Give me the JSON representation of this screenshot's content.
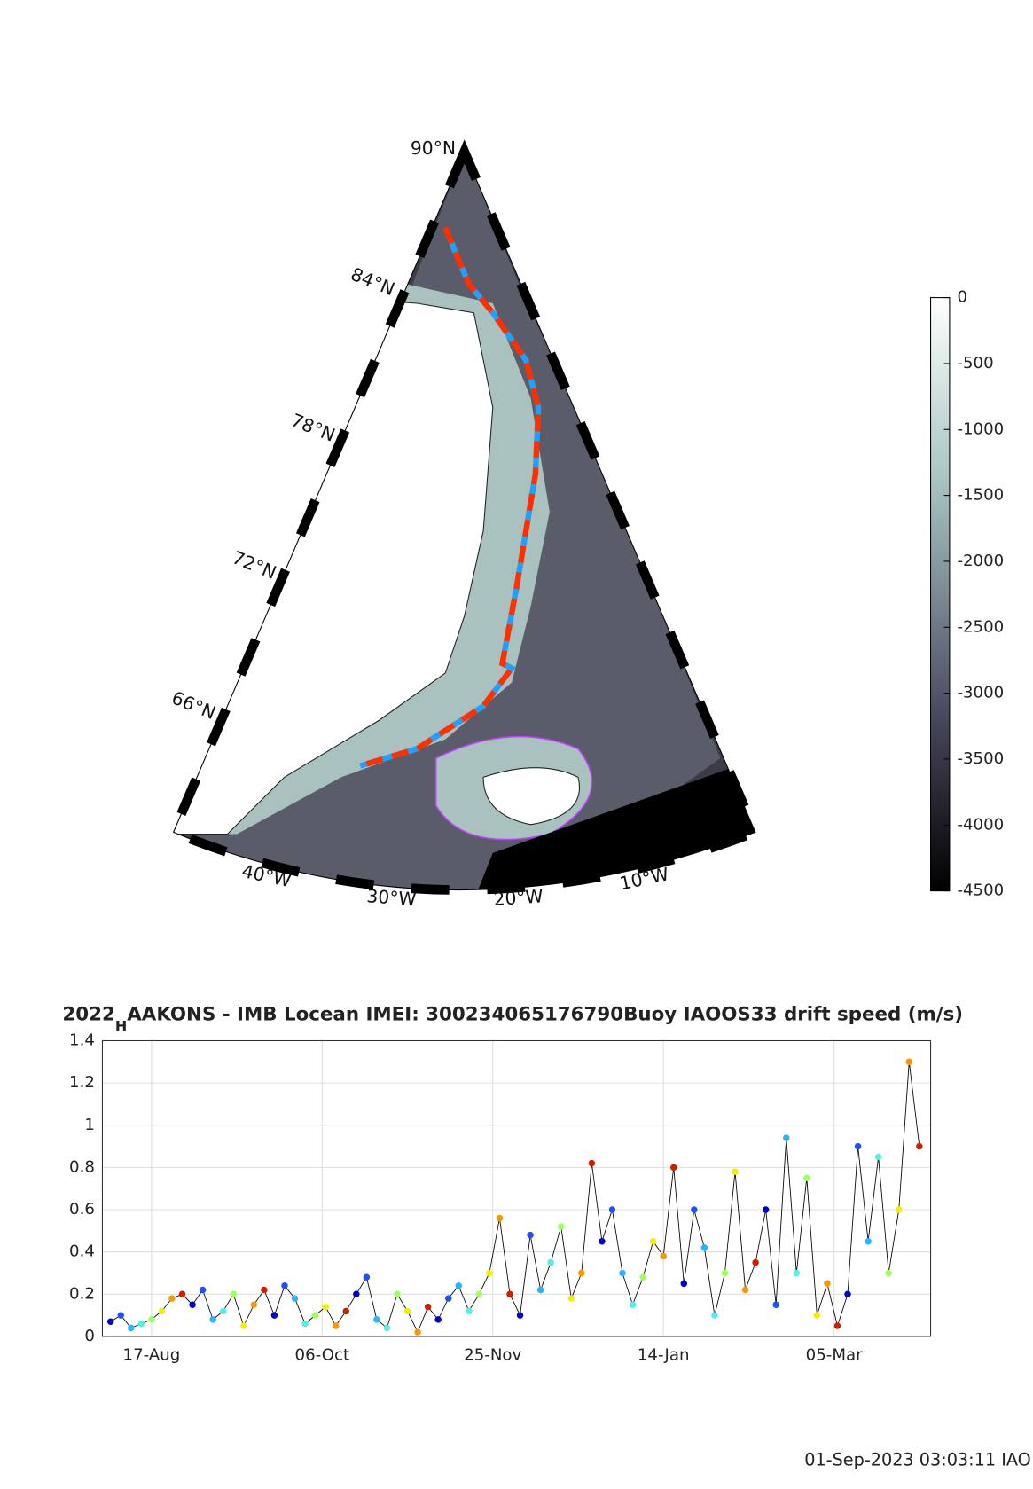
{
  "chart_data": [
    {
      "type": "map",
      "lat_labels": [
        "90°N",
        "84°N",
        "78°N",
        "72°N",
        "66°N"
      ],
      "lon_labels": [
        "40°W",
        "30°W",
        "20°W",
        "10°W"
      ],
      "clim": [
        -4500,
        0
      ],
      "cticks": [
        0,
        -500,
        -1000,
        -1500,
        -2000,
        -2500,
        -3000,
        -3500,
        -4000,
        -4500
      ]
    },
    {
      "type": "line",
      "title_main": "2022",
      "title_sub": "H",
      "title_rest": "AAKONS - IMB Locean IMEI: 300234065176790Buoy IAOOS33 drift speed (m/s)",
      "xlim": [
        -14.4,
        228.3
      ],
      "xticks": [
        {
          "value": 0,
          "label": "17-Aug"
        },
        {
          "value": 50,
          "label": "06-Oct"
        },
        {
          "value": 100,
          "label": "25-Nov"
        },
        {
          "value": 150,
          "label": "14-Jan"
        },
        {
          "value": 200,
          "label": "05-Mar"
        }
      ],
      "ylim": [
        0,
        1.4
      ],
      "yticks": [
        0,
        0.2,
        0.4,
        0.6,
        0.8,
        1,
        1.2,
        1.4
      ],
      "grid": true,
      "line_color": "#000000",
      "x": [
        -12,
        -9,
        -6,
        -3,
        0,
        3,
        6,
        9,
        12,
        15,
        18,
        21,
        24,
        27,
        30,
        33,
        36,
        39,
        42,
        45,
        48,
        51,
        54,
        57,
        60,
        63,
        66,
        69,
        72,
        75,
        78,
        81,
        84,
        87,
        90,
        93,
        96,
        99,
        102,
        105,
        108,
        111,
        114,
        117,
        120,
        123,
        126,
        129,
        132,
        135,
        138,
        141,
        144,
        147,
        150,
        153,
        156,
        159,
        162,
        165,
        168,
        171,
        174,
        177,
        180,
        183,
        186,
        189,
        192,
        195,
        198,
        201,
        204,
        207,
        210,
        213,
        216,
        219,
        222,
        225
      ],
      "values": [
        0.07,
        0.1,
        0.04,
        0.06,
        0.08,
        0.12,
        0.18,
        0.2,
        0.15,
        0.22,
        0.08,
        0.12,
        0.2,
        0.05,
        0.15,
        0.22,
        0.1,
        0.24,
        0.18,
        0.06,
        0.1,
        0.14,
        0.05,
        0.12,
        0.2,
        0.28,
        0.08,
        0.04,
        0.2,
        0.12,
        0.02,
        0.14,
        0.08,
        0.18,
        0.24,
        0.12,
        0.2,
        0.3,
        0.56,
        0.2,
        0.1,
        0.48,
        0.22,
        0.35,
        0.52,
        0.18,
        0.3,
        0.82,
        0.45,
        0.6,
        0.3,
        0.15,
        0.28,
        0.45,
        0.38,
        0.8,
        0.25,
        0.6,
        0.42,
        0.1,
        0.3,
        0.78,
        0.22,
        0.35,
        0.6,
        0.15,
        0.94,
        0.3,
        0.75,
        0.1,
        0.25,
        0.05,
        0.2,
        0.9,
        0.45,
        0.85,
        0.3,
        0.6,
        1.3,
        0.9
      ],
      "colors": [
        "#0000c8",
        "#1e50ff",
        "#28b4ff",
        "#50f0e6",
        "#a0ff60",
        "#f0f000",
        "#ff9600",
        "#d21e00",
        "#0000c8",
        "#1e50ff",
        "#28b4ff",
        "#50f0e6",
        "#a0ff60",
        "#f0f000",
        "#ff9600",
        "#d21e00",
        "#0000c8",
        "#1e50ff",
        "#28b4ff",
        "#50f0e6",
        "#a0ff60",
        "#f0f000",
        "#ff9600",
        "#d21e00",
        "#0000c8",
        "#1e50ff",
        "#28b4ff",
        "#50f0e6",
        "#a0ff60",
        "#f0f000",
        "#ff9600",
        "#d21e00",
        "#0000c8",
        "#1e50ff",
        "#28b4ff",
        "#50f0e6",
        "#a0ff60",
        "#f0f000",
        "#ff9600",
        "#d21e00",
        "#0000c8",
        "#1e50ff",
        "#28b4ff",
        "#50f0e6",
        "#a0ff60",
        "#f0f000",
        "#ff9600",
        "#d21e00",
        "#0000c8",
        "#1e50ff",
        "#28b4ff",
        "#50f0e6",
        "#a0ff60",
        "#f0f000",
        "#ff9600",
        "#d21e00",
        "#0000c8",
        "#1e50ff",
        "#28b4ff",
        "#50f0e6",
        "#a0ff60",
        "#f0f000",
        "#ff9600",
        "#d21e00",
        "#0000c8",
        "#1e50ff",
        "#28b4ff",
        "#50f0e6",
        "#a0ff60",
        "#f0f000",
        "#ff9600",
        "#d21e00",
        "#0000c8",
        "#1e50ff",
        "#28b4ff",
        "#50f0e6",
        "#a0ff60",
        "#f0f000",
        "#ff9600",
        "#d21e00"
      ]
    }
  ],
  "footer": "01-Sep-2023 03:03:11 IAO"
}
